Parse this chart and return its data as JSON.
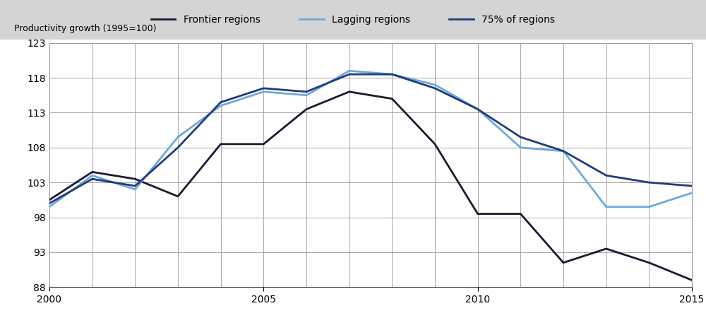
{
  "years": [
    2000,
    2001,
    2002,
    2003,
    2004,
    2005,
    2006,
    2007,
    2008,
    2009,
    2010,
    2011,
    2012,
    2013,
    2014,
    2015
  ],
  "frontier": [
    100.5,
    104.5,
    103.5,
    101.0,
    108.5,
    108.5,
    113.5,
    116.0,
    115.0,
    108.5,
    98.5,
    98.5,
    91.5,
    93.5,
    91.5,
    89.0
  ],
  "lagging": [
    99.5,
    104.0,
    102.0,
    109.5,
    114.0,
    116.0,
    115.5,
    119.0,
    118.5,
    117.0,
    113.5,
    108.0,
    107.5,
    99.5,
    99.5,
    101.5
  ],
  "frontier75": [
    100.0,
    103.5,
    102.5,
    108.0,
    114.5,
    116.5,
    116.0,
    118.5,
    118.5,
    116.5,
    113.5,
    109.5,
    107.5,
    104.0,
    103.0,
    102.5
  ],
  "frontier_color": "#1a1a2e",
  "lagging_color": "#6fa8dc",
  "frontier75_color": "#1f3c7a",
  "legend_bg": "#d4d4d4",
  "ylabel": "Productivity growth (1995=100)",
  "ylim": [
    88,
    123
  ],
  "yticks": [
    88,
    93,
    98,
    103,
    108,
    113,
    118,
    123
  ],
  "xlim": [
    2000,
    2015
  ],
  "xticks": [
    2000,
    2005,
    2010,
    2015
  ],
  "legend_labels": [
    "Frontier regions",
    "Lagging regions",
    "75% of regions"
  ],
  "grid_color": "#999999",
  "linewidth": 2.0,
  "figure_width": 10.0,
  "figure_height": 4.67,
  "dpi": 100
}
